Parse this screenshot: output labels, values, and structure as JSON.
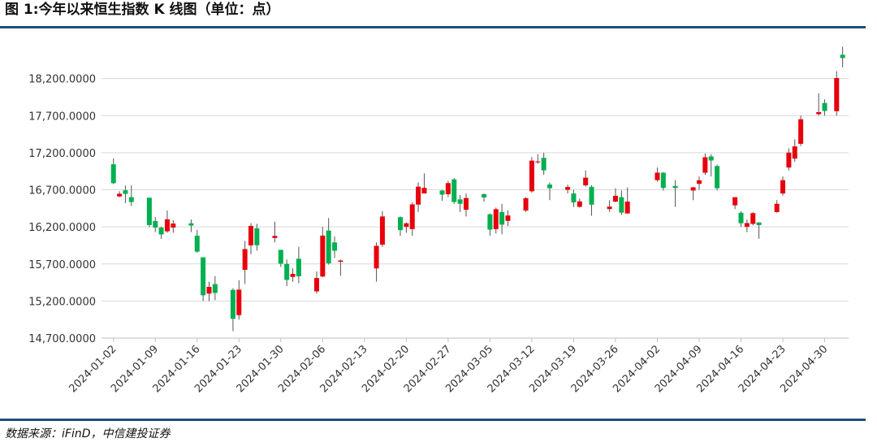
{
  "chart_data": {
    "type": "candlestick",
    "title": "图 1:今年以来恒生指数 K 线图（单位：点）",
    "source": "数据来源：iFinD，中信建投证券",
    "up_color": "#e8000b",
    "down_color": "#00b050",
    "grid": true,
    "xlim": [
      "2023-12-31",
      "2024-05-04"
    ],
    "xticks": [
      "2024-01-02",
      "2024-01-09",
      "2024-01-16",
      "2024-01-23",
      "2024-01-30",
      "2024-02-06",
      "2024-02-13",
      "2024-02-20",
      "2024-02-27",
      "2024-03-05",
      "2024-03-12",
      "2024-03-19",
      "2024-03-26",
      "2024-04-02",
      "2024-04-09",
      "2024-04-16",
      "2024-04-23",
      "2024-04-30"
    ],
    "ylim": [
      14700,
      18700
    ],
    "yticks": [
      {
        "value": 14700,
        "label": "14,700.0000"
      },
      {
        "value": 15200,
        "label": "15,200.0000"
      },
      {
        "value": 15700,
        "label": "15,700.0000"
      },
      {
        "value": 16200,
        "label": "16,200.0000"
      },
      {
        "value": 16700,
        "label": "16,700.0000"
      },
      {
        "value": 17200,
        "label": "17,200.0000"
      },
      {
        "value": 17700,
        "label": "17,700.0000"
      },
      {
        "value": 18200,
        "label": "18,200.0000"
      }
    ],
    "x": [
      "2024-01-02",
      "2024-01-03",
      "2024-01-04",
      "2024-01-05",
      "2024-01-08",
      "2024-01-09",
      "2024-01-10",
      "2024-01-11",
      "2024-01-12",
      "2024-01-15",
      "2024-01-16",
      "2024-01-17",
      "2024-01-18",
      "2024-01-19",
      "2024-01-22",
      "2024-01-23",
      "2024-01-24",
      "2024-01-25",
      "2024-01-26",
      "2024-01-29",
      "2024-01-30",
      "2024-01-31",
      "2024-02-01",
      "2024-02-02",
      "2024-02-05",
      "2024-02-06",
      "2024-02-07",
      "2024-02-08",
      "2024-02-09",
      "2024-02-15",
      "2024-02-16",
      "2024-02-19",
      "2024-02-20",
      "2024-02-21",
      "2024-02-22",
      "2024-02-23",
      "2024-02-26",
      "2024-02-27",
      "2024-02-28",
      "2024-02-29",
      "2024-03-01",
      "2024-03-04",
      "2024-03-05",
      "2024-03-06",
      "2024-03-07",
      "2024-03-08",
      "2024-03-11",
      "2024-03-12",
      "2024-03-13",
      "2024-03-14",
      "2024-03-15",
      "2024-03-18",
      "2024-03-19",
      "2024-03-20",
      "2024-03-21",
      "2024-03-22",
      "2024-03-25",
      "2024-03-26",
      "2024-03-27",
      "2024-03-28",
      "2024-04-02",
      "2024-04-03",
      "2024-04-05",
      "2024-04-08",
      "2024-04-09",
      "2024-04-10",
      "2024-04-11",
      "2024-04-12",
      "2024-04-15",
      "2024-04-16",
      "2024-04-17",
      "2024-04-18",
      "2024-04-19",
      "2024-04-22",
      "2024-04-23",
      "2024-04-24",
      "2024-04-25",
      "2024-04-26",
      "2024-04-29",
      "2024-04-30",
      "2024-05-02",
      "2024-05-03"
    ],
    "open": [
      17044,
      16610,
      16693,
      16600,
      16593,
      16278,
      16190,
      16140,
      16190,
      16248,
      16080,
      15790,
      15300,
      15428,
      15350,
      15010,
      15620,
      15950,
      16180,
      16050,
      15890,
      15700,
      15525,
      15770,
      15330,
      15530,
      16150,
      15990,
      15730,
      15640,
      15960,
      16330,
      16200,
      16170,
      16500,
      16650,
      16690,
      16640,
      16840,
      16570,
      16430,
      16640,
      16370,
      16170,
      16400,
      16280,
      16420,
      16680,
      17070,
      17130,
      16770,
      16700,
      16650,
      16470,
      16760,
      16740,
      16440,
      16540,
      16600,
      16380,
      16830,
      16930,
      16750,
      16690,
      16780,
      16930,
      17150,
      17020,
      16490,
      16390,
      16200,
      16240,
      16260,
      16400,
      16650,
      17000,
      17120,
      17320,
      17720,
      17870,
      17760,
      18520
    ],
    "high": [
      17123,
      16680,
      16757,
      16760,
      16593,
      16332,
      16205,
      16420,
      16290,
      16300,
      16160,
      15790,
      15460,
      15536,
      15372,
      15480,
      16010,
      16250,
      16240,
      16270,
      15890,
      15760,
      15640,
      15930,
      15600,
      16200,
      16320,
      16070,
      15760,
      15990,
      16410,
      16340,
      16260,
      16530,
      16800,
      16920,
      16700,
      16820,
      16860,
      16630,
      16650,
      16650,
      16380,
      16460,
      16510,
      16420,
      16600,
      17140,
      17180,
      17200,
      16800,
      16770,
      16700,
      16580,
      16960,
      16760,
      16560,
      16720,
      16690,
      16730,
      17000,
      16940,
      16830,
      16740,
      16880,
      17190,
      17180,
      17040,
      16600,
      16410,
      16300,
      16400,
      16260,
      16560,
      16880,
      17260,
      17380,
      17700,
      18000,
      17920,
      18300,
      18630
    ],
    "low": [
      16777,
      16600,
      16520,
      16480,
      16196,
      16129,
      16038,
      16120,
      16120,
      16130,
      15850,
      15200,
      15200,
      15213,
      14794,
      14950,
      15430,
      15830,
      15880,
      15990,
      15660,
      15400,
      15460,
      15440,
      15300,
      15520,
      15690,
      15780,
      15540,
      15460,
      15930,
      16080,
      16120,
      16080,
      16400,
      16650,
      16550,
      16600,
      16510,
      16400,
      16340,
      16540,
      16080,
      16110,
      16100,
      16210,
      16400,
      16660,
      17050,
      16900,
      16560,
      16650,
      16470,
      16460,
      16740,
      16350,
      16400,
      16530,
      16360,
      16380,
      16810,
      16690,
      16470,
      16560,
      16700,
      16900,
      16880,
      16690,
      16440,
      16200,
      16130,
      16220,
      16040,
      16390,
      16620,
      16960,
      17080,
      17290,
      17700,
      17700,
      17700,
      18350
    ],
    "close": [
      16789,
      16646,
      16645,
      16535,
      16224,
      16190,
      16098,
      16302,
      16244,
      16217,
      15866,
      15277,
      15391,
      15309,
      14961,
      15353,
      15900,
      16212,
      15952,
      16078,
      15703,
      15485,
      15566,
      15533,
      15510,
      16082,
      15708,
      15878,
      15746,
      15944,
      16340,
      16156,
      16248,
      16503,
      16742,
      16726,
      16634,
      16790,
      16536,
      16511,
      16589,
      16596,
      16163,
      16438,
      16230,
      16353,
      16587,
      17093,
      17082,
      16962,
      16721,
      16737,
      16530,
      16543,
      16863,
      16499,
      16473,
      16619,
      16392,
      16541,
      16931,
      16725,
      16724,
      16733,
      16828,
      17139,
      17095,
      16721,
      16600,
      16248,
      16251,
      16385,
      16224,
      16511,
      16829,
      17201,
      17285,
      17651,
      17747,
      17763,
      18207,
      18476
    ]
  }
}
